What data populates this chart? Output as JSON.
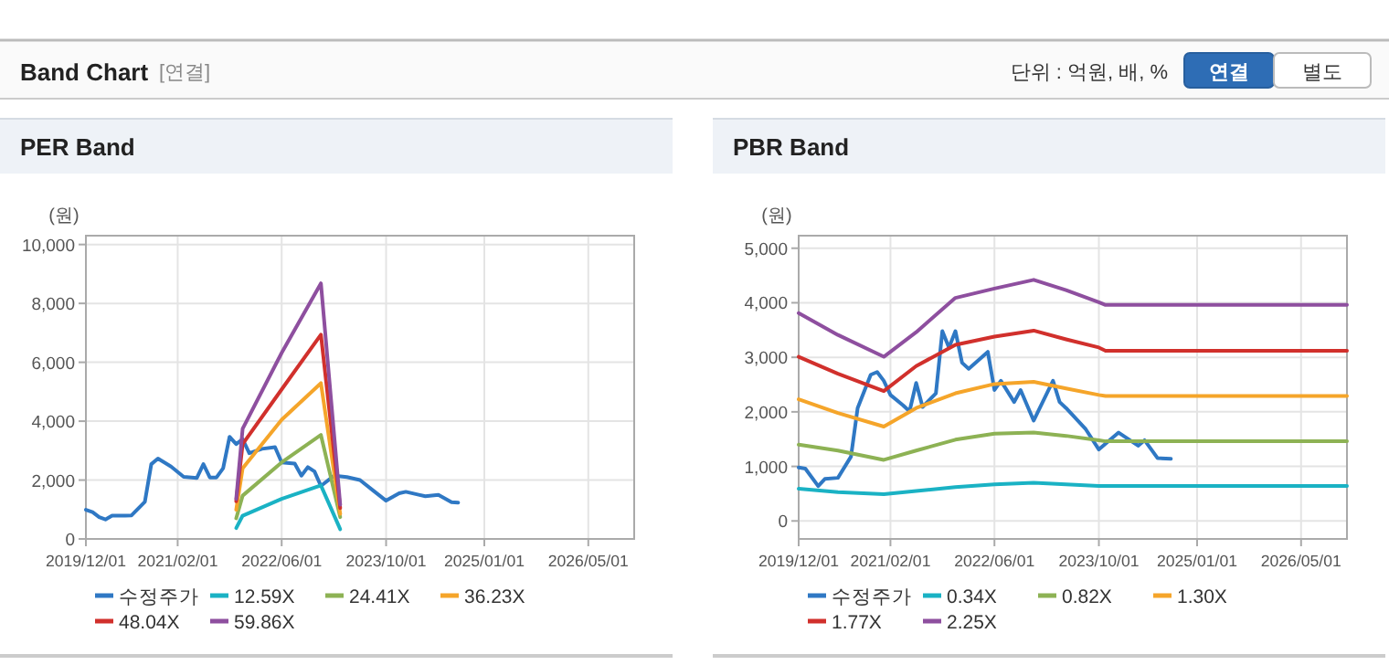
{
  "chart_data": [
    {
      "type": "other",
      "title": "Band Chart",
      "annotations": [
        "[연결]",
        "단위 : 억원, 배, %",
        "연결",
        "별도"
      ]
    },
    {
      "type": "line",
      "title": "PER Band",
      "ylabel": "(원)",
      "grid": true,
      "legend": "bottom",
      "xlim": [
        "2019-12-01",
        "2026-12-01"
      ],
      "ylim": [
        0,
        10300
      ],
      "xticks": [
        {
          "value": "2019-12-01",
          "label": "2019/12/01"
        },
        {
          "value": "2021-02-01",
          "label": "2021/02/01"
        },
        {
          "value": "2022-06-01",
          "label": "2022/06/01"
        },
        {
          "value": "2023-10-01",
          "label": "2023/10/01"
        },
        {
          "value": "2025-01-01",
          "label": "2025/01/01"
        },
        {
          "value": "2026-05-01",
          "label": "2026/05/01"
        }
      ],
      "yticks": [
        0,
        {
          "value": 2000,
          "label": "2,000"
        },
        {
          "value": 4000,
          "label": "4,000"
        },
        {
          "value": 6000,
          "label": "6,000"
        },
        {
          "value": 8000,
          "label": "8,000"
        },
        {
          "value": 10000,
          "label": "10,000"
        }
      ],
      "series": [
        {
          "name": "수정주가",
          "color": "#2f78c4",
          "x": [
            "2019-12",
            "2020-01",
            "2020-02",
            "2020-03",
            "2020-04",
            "2020-06",
            "2020-07",
            "2020-09",
            "2020-10",
            "2020-11",
            "2021-01",
            "2021-03",
            "2021-05",
            "2021-06",
            "2021-07",
            "2021-08",
            "2021-09",
            "2021-10",
            "2021-11",
            "2021-12",
            "2022-01",
            "2022-03",
            "2022-05",
            "2022-06",
            "2022-08",
            "2022-09",
            "2022-10",
            "2022-11",
            "2022-12",
            "2023-02",
            "2023-04",
            "2023-06",
            "2023-08",
            "2023-10",
            "2023-12",
            "2024-01",
            "2024-03",
            "2024-04",
            "2024-06",
            "2024-08",
            "2024-09"
          ],
          "values": [
            990,
            910,
            740,
            660,
            790,
            790,
            800,
            1260,
            2540,
            2730,
            2460,
            2110,
            2070,
            2540,
            2090,
            2090,
            2400,
            3470,
            3220,
            3390,
            2910,
            3060,
            3120,
            2600,
            2560,
            2150,
            2440,
            2290,
            1800,
            2150,
            2100,
            2000,
            1650,
            1300,
            1550,
            1600,
            1500,
            1450,
            1500,
            1250,
            1230
          ]
        },
        {
          "name": "12.59X",
          "color": "#1ab2c4",
          "x": [
            "2021-11",
            "2021-12",
            "2022-06",
            "2022-12",
            "2023-03"
          ],
          "values": [
            370,
            790,
            1360,
            1820,
            330
          ]
        },
        {
          "name": "24.41X",
          "color": "#8db254",
          "x": [
            "2021-11",
            "2021-12",
            "2022-06",
            "2022-12",
            "2023-03"
          ],
          "values": [
            700,
            1470,
            2600,
            3530,
            740
          ]
        },
        {
          "name": "36.23X",
          "color": "#f5a52a",
          "x": [
            "2021-11",
            "2021-12",
            "2022-06",
            "2022-12",
            "2023-03"
          ],
          "values": [
            990,
            2400,
            4050,
            5290,
            850
          ]
        },
        {
          "name": "48.04X",
          "color": "#d1302c",
          "x": [
            "2021-11",
            "2021-12",
            "2022-06",
            "2022-12",
            "2023-03"
          ],
          "values": [
            1280,
            3220,
            5080,
            6940,
            1050
          ]
        },
        {
          "name": "59.86X",
          "color": "#8e4f9f",
          "x": [
            "2021-11",
            "2021-12",
            "2022-06",
            "2022-12",
            "2023-03"
          ],
          "values": [
            1360,
            3740,
            6320,
            8680,
            1160
          ]
        }
      ]
    },
    {
      "type": "line",
      "title": "PBR Band",
      "ylabel": "(원)",
      "grid": true,
      "legend": "bottom",
      "xlim": [
        "2019-12-01",
        "2026-12-01"
      ],
      "ylim": [
        -330,
        5230
      ],
      "xticks": [
        {
          "value": "2019-12-01",
          "label": "2019/12/01"
        },
        {
          "value": "2021-02-01",
          "label": "2021/02/01"
        },
        {
          "value": "2022-06-01",
          "label": "2022/06/01"
        },
        {
          "value": "2023-10-01",
          "label": "2023/10/01"
        },
        {
          "value": "2025-01-01",
          "label": "2025/01/01"
        },
        {
          "value": "2026-05-01",
          "label": "2026/05/01"
        }
      ],
      "yticks": [
        0,
        {
          "value": 1000,
          "label": "1,000"
        },
        {
          "value": 2000,
          "label": "2,000"
        },
        {
          "value": 3000,
          "label": "3,000"
        },
        {
          "value": 4000,
          "label": "4,000"
        },
        {
          "value": 5000,
          "label": "5,000"
        }
      ],
      "series": [
        {
          "name": "수정주가",
          "color": "#2f78c4",
          "x": [
            "2019-12",
            "2020-01",
            "2020-03",
            "2020-04",
            "2020-06",
            "2020-08",
            "2020-09",
            "2020-11",
            "2020-12",
            "2021-01",
            "2021-02",
            "2021-04",
            "2021-05",
            "2021-06",
            "2021-07",
            "2021-09",
            "2021-10",
            "2021-11",
            "2021-12",
            "2022-01",
            "2022-02",
            "2022-05",
            "2022-06",
            "2022-07",
            "2022-09",
            "2022-10",
            "2022-12",
            "2023-03",
            "2023-04",
            "2023-05",
            "2023-08",
            "2023-10",
            "2024-01",
            "2024-04",
            "2024-05",
            "2024-07",
            "2024-09"
          ],
          "values": [
            980,
            960,
            640,
            770,
            790,
            1180,
            2070,
            2680,
            2730,
            2570,
            2310,
            2120,
            2010,
            2530,
            2090,
            2340,
            3480,
            3180,
            3480,
            2900,
            2790,
            3100,
            2400,
            2570,
            2180,
            2400,
            1840,
            2570,
            2180,
            2070,
            1680,
            1310,
            1620,
            1380,
            1480,
            1150,
            1140
          ]
        },
        {
          "name": "0.34X",
          "color": "#1ab2c4",
          "x": [
            "2019-12",
            "2020-06",
            "2021-01",
            "2021-06",
            "2021-12",
            "2022-06",
            "2022-12",
            "2023-05",
            "2023-10",
            "2023-11",
            "2026-12"
          ],
          "values": [
            590,
            530,
            490,
            550,
            620,
            670,
            700,
            670,
            640,
            640,
            640
          ]
        },
        {
          "name": "0.82X",
          "color": "#8db254",
          "x": [
            "2019-12",
            "2020-06",
            "2021-01",
            "2021-06",
            "2021-12",
            "2022-06",
            "2022-12",
            "2023-05",
            "2023-10",
            "2023-11",
            "2026-12"
          ],
          "values": [
            1400,
            1290,
            1120,
            1290,
            1490,
            1600,
            1620,
            1560,
            1480,
            1460,
            1460
          ]
        },
        {
          "name": "1.30X",
          "color": "#f5a52a",
          "x": [
            "2019-12",
            "2020-06",
            "2021-01",
            "2021-06",
            "2021-12",
            "2022-06",
            "2022-12",
            "2023-05",
            "2023-10",
            "2023-11",
            "2026-12"
          ],
          "values": [
            2230,
            1980,
            1730,
            2070,
            2340,
            2510,
            2550,
            2430,
            2310,
            2290,
            2290
          ]
        },
        {
          "name": "1.77X",
          "color": "#d1302c",
          "x": [
            "2019-12",
            "2020-06",
            "2021-01",
            "2021-06",
            "2021-12",
            "2022-06",
            "2022-12",
            "2023-05",
            "2023-10",
            "2023-11",
            "2026-12"
          ],
          "values": [
            3010,
            2700,
            2380,
            2840,
            3230,
            3380,
            3490,
            3330,
            3180,
            3120,
            3120
          ]
        },
        {
          "name": "2.25X",
          "color": "#8e4f9f",
          "x": [
            "2019-12",
            "2020-06",
            "2021-01",
            "2021-06",
            "2021-12",
            "2022-06",
            "2022-12",
            "2023-05",
            "2023-10",
            "2023-11",
            "2026-12"
          ],
          "values": [
            3810,
            3410,
            3010,
            3460,
            4090,
            4260,
            4420,
            4230,
            4010,
            3960,
            3960
          ]
        }
      ]
    }
  ]
}
